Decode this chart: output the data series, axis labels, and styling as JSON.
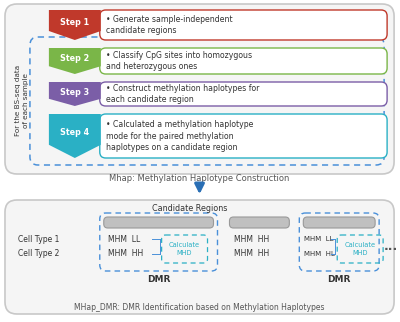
{
  "bg_color": "#ffffff",
  "outer_box_color": "#c8c8c8",
  "dashed_box_color": "#4a90d9",
  "step_colors": [
    "#c0392b",
    "#7ab648",
    "#7b5ea7",
    "#2ab0c5"
  ],
  "step_labels": [
    "Step 1",
    "Step 2",
    "Step 3",
    "Step 4"
  ],
  "step_texts": [
    "Generate sample-independent\ncandidate regions",
    "Classify CpG sites into homozygous\nand heterozygous ones",
    "Construct methylation haplotypes for\neach candidate region",
    "Calculated a methylation haplotype\nmode for the paired methylation\nhaplotypes on a candidate region"
  ],
  "side_label_lines": [
    "For the BS-seq data",
    "of each sample"
  ],
  "mhap_label": "Mhap: Methylation Haplotype Construction",
  "bottom_label": "MHap_DMR: DMR Identification based on Methylation Haplotypes",
  "candidate_label": "Candidate Regions",
  "cell_type1": "Cell Type 1",
  "cell_type2": "Cell Type 2",
  "dmr_label": "DMR",
  "arrow_color": "#2a6fb5",
  "calc_mhd_color": "#2ab0c5"
}
